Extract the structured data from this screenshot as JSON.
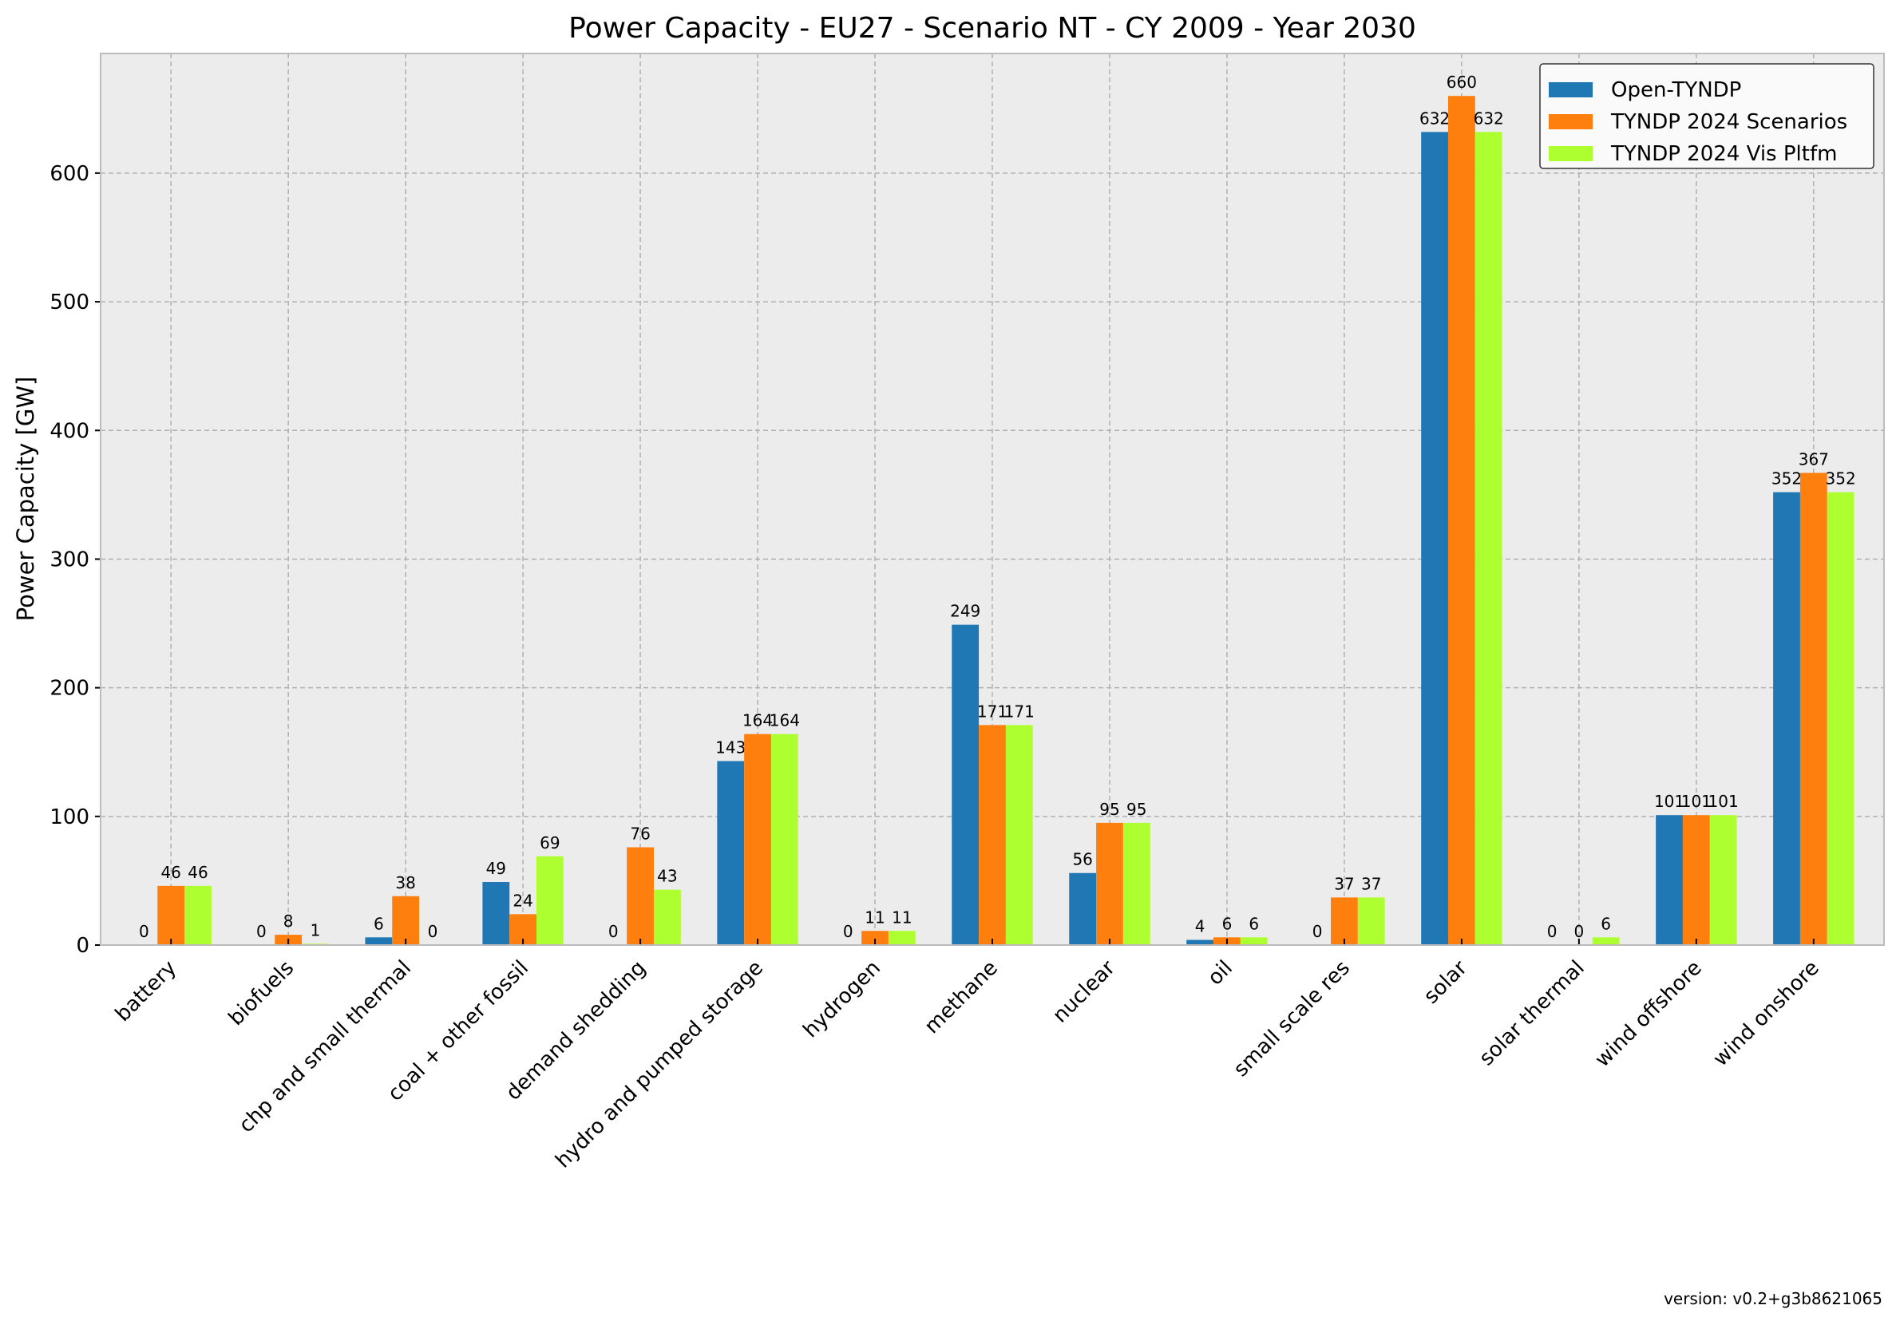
{
  "chart_data": {
    "type": "bar",
    "title": "Power Capacity - EU27 - Scenario NT - CY 2009 - Year 2030",
    "xlabel": "",
    "ylabel": "Power Capacity [GW]",
    "ylim": [
      0,
      693
    ],
    "yticks": [
      0,
      100,
      200,
      300,
      400,
      500,
      600
    ],
    "grid": true,
    "legend_position": "top-right",
    "categories": [
      "battery",
      "biofuels",
      "chp and small thermal",
      "coal + other fossil",
      "demand shedding",
      "hydro and pumped storage",
      "hydrogen",
      "methane",
      "nuclear",
      "oil",
      "small scale res",
      "solar",
      "solar thermal",
      "wind offshore",
      "wind onshore"
    ],
    "series": [
      {
        "name": "Open-TYNDP",
        "color": "#1f77b4",
        "values": [
          0,
          0,
          6,
          49,
          0,
          143,
          0,
          249,
          56,
          4,
          0,
          632,
          0,
          101,
          352
        ]
      },
      {
        "name": "TYNDP 2024 Scenarios",
        "color": "#ff7f0e",
        "values": [
          46,
          8,
          38,
          24,
          76,
          164,
          11,
          171,
          95,
          6,
          37,
          660,
          0,
          101,
          367
        ]
      },
      {
        "name": "TYNDP 2024 Vis Pltfm",
        "color": "#adff2f",
        "values": [
          46,
          1,
          0,
          69,
          43,
          164,
          11,
          171,
          95,
          6,
          37,
          632,
          6,
          101,
          352
        ]
      }
    ]
  },
  "footer": {
    "version": "version: v0.2+g3b8621065"
  }
}
